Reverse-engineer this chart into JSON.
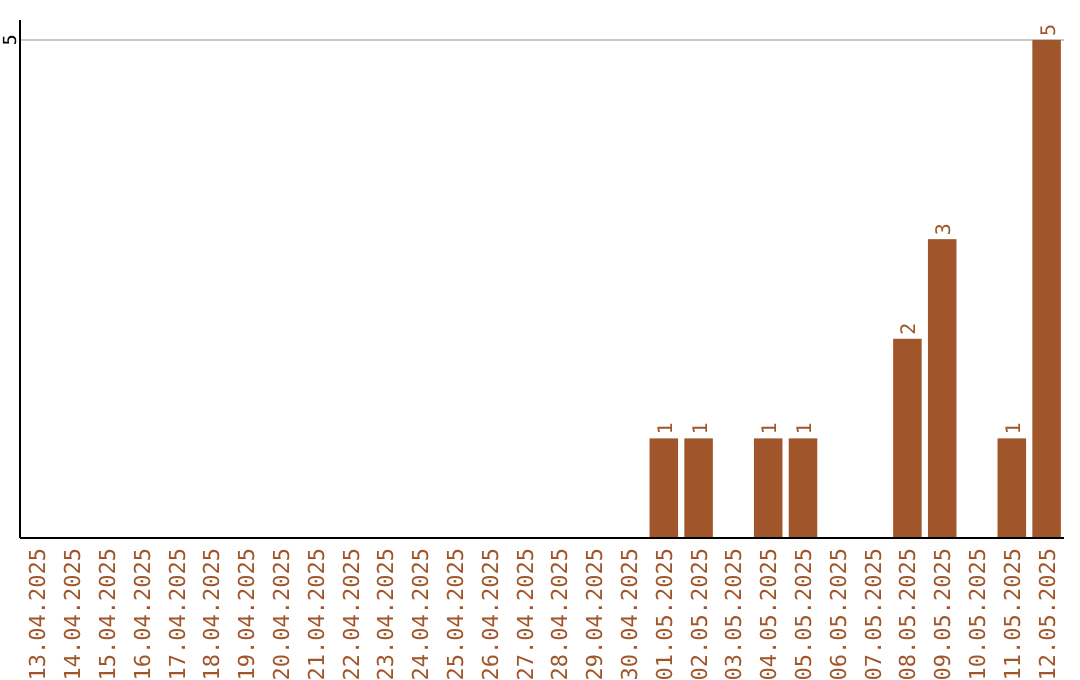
{
  "chart_data": {
    "type": "bar",
    "categories": [
      "13.04.2025",
      "14.04.2025",
      "15.04.2025",
      "16.04.2025",
      "17.04.2025",
      "18.04.2025",
      "19.04.2025",
      "20.04.2025",
      "21.04.2025",
      "22.04.2025",
      "23.04.2025",
      "24.04.2025",
      "25.04.2025",
      "26.04.2025",
      "27.04.2025",
      "28.04.2025",
      "29.04.2025",
      "30.04.2025",
      "01.05.2025",
      "02.05.2025",
      "03.05.2025",
      "04.05.2025",
      "05.05.2025",
      "06.05.2025",
      "07.05.2025",
      "08.05.2025",
      "09.05.2025",
      "10.05.2025",
      "11.05.2025",
      "12.05.2025"
    ],
    "values": [
      null,
      null,
      null,
      null,
      null,
      null,
      null,
      null,
      null,
      null,
      null,
      null,
      null,
      null,
      null,
      null,
      null,
      null,
      1,
      1,
      null,
      1,
      1,
      null,
      null,
      2,
      3,
      null,
      1,
      5
    ],
    "value_labels": [
      null,
      null,
      null,
      null,
      null,
      null,
      null,
      null,
      null,
      null,
      null,
      null,
      null,
      null,
      null,
      null,
      null,
      null,
      "1",
      "1",
      null,
      "1",
      "1",
      null,
      null,
      "2",
      "3",
      null,
      "1",
      "5"
    ],
    "color": "#a0562a",
    "ylim": [
      0,
      5.2
    ],
    "ref_lines": [
      {
        "axis": "y",
        "value": 5,
        "label": "5",
        "color": "#c8c8c8"
      }
    ]
  }
}
